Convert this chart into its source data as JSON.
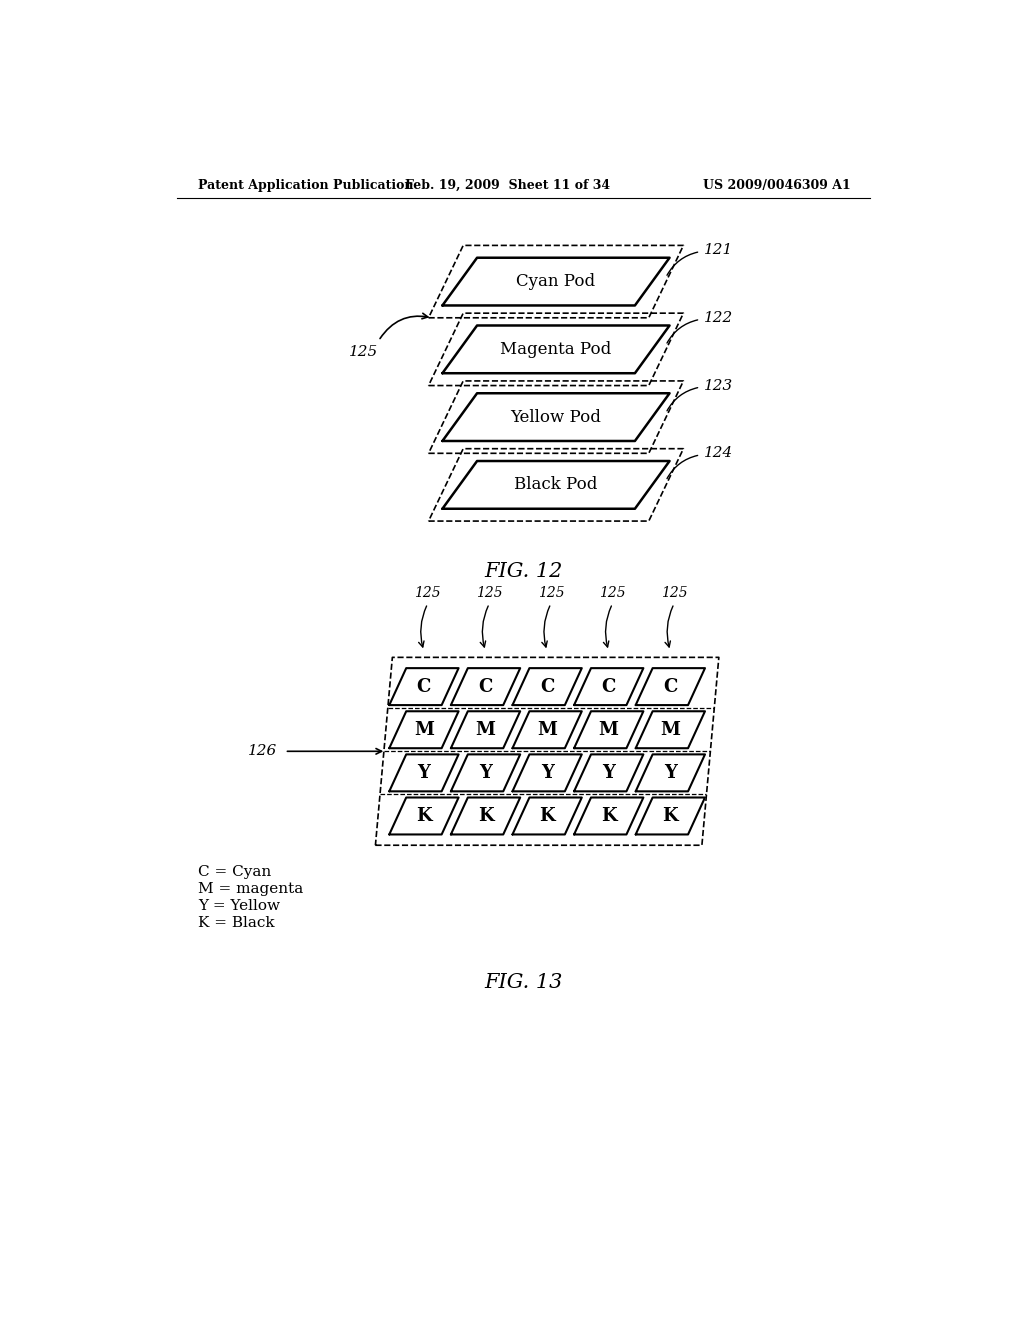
{
  "header_left": "Patent Application Publication",
  "header_mid": "Feb. 19, 2009  Sheet 11 of 34",
  "header_right": "US 2009/0046309 A1",
  "fig12_label": "FIG. 12",
  "fig13_label": "FIG. 13",
  "pods": [
    {
      "label": "Cyan Pod",
      "ref": "121"
    },
    {
      "label": "Magenta Pod",
      "ref": "122"
    },
    {
      "label": "Yellow Pod",
      "ref": "123"
    },
    {
      "label": "Black Pod",
      "ref": "124"
    }
  ],
  "label_125": "125",
  "label_126": "126",
  "grid_rows": [
    "C",
    "M",
    "Y",
    "K"
  ],
  "grid_cols": 5,
  "legend_lines": [
    "C = Cyan",
    "M = magenta",
    "Y = Yellow",
    "K = Black"
  ],
  "background_color": "#ffffff"
}
